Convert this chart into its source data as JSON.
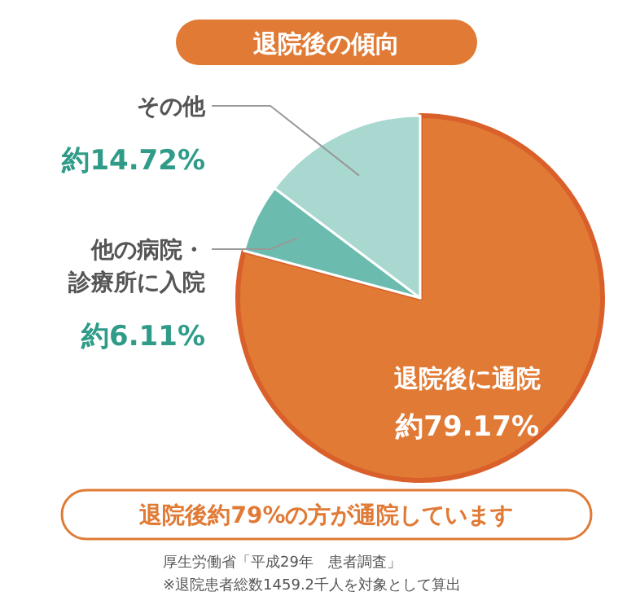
{
  "chart_data": {
    "type": "pie",
    "title": "退院後の傾向",
    "categories": [
      "退院後に通院",
      "他の病院・診療所に入院",
      "その他"
    ],
    "values": [
      79.17,
      6.11,
      14.72
    ],
    "value_labels": [
      "約79.17%",
      "約6.11%",
      "約14.72%"
    ],
    "colors": [
      "#e07a35",
      "#6bbcae",
      "#a9d8d1"
    ],
    "annotations": [
      "退院後約79%の方が通院しています",
      "厚生労働省「平成29年　患者調査」",
      "※退院患者総数1459.2千人を対象として算出"
    ]
  }
}
